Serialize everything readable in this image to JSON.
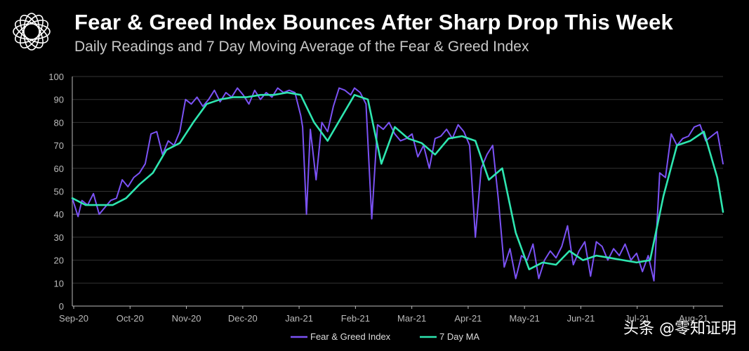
{
  "header": {
    "title": "Fear & Greed Index Bounces After Sharp Drop This Week",
    "subtitle": "Daily Readings and 7 Day Moving Average of the Fear & Greed Index"
  },
  "watermark": "头条 @零知证明",
  "colors": {
    "daily": "#7b52f5",
    "ma": "#2ee6b0",
    "grid": "#333333",
    "axis": "#bbbbbb",
    "refline": "#555555"
  },
  "chart_data": {
    "type": "line",
    "title": "Fear & Greed Index Bounces After Sharp Drop This Week",
    "xlabel": "",
    "ylabel": "",
    "ylim": [
      0,
      100
    ],
    "yticks": [
      0,
      10,
      20,
      30,
      40,
      50,
      60,
      70,
      80,
      90,
      100
    ],
    "grid": true,
    "xticks": [
      "Sep-20",
      "Oct-20",
      "Nov-20",
      "Dec-20",
      "Jan-21",
      "Feb-21",
      "Mar-21",
      "Apr-21",
      "May-21",
      "Jun-21",
      "Jul-21",
      "Aug-21"
    ],
    "legend": [
      "Fear & Greed Index",
      "7 Day MA"
    ],
    "reference_line": 40,
    "series": [
      {
        "name": "Fear & Greed Index",
        "x": [
          0,
          3,
          5,
          8,
          11,
          14,
          17,
          20,
          23,
          26,
          29,
          32,
          35,
          38,
          41,
          44,
          47,
          50,
          53,
          56,
          59,
          62,
          65,
          68,
          71,
          74,
          77,
          80,
          83,
          86,
          89,
          92,
          95,
          98,
          101,
          104,
          107,
          110,
          113,
          116,
          119,
          120,
          122,
          124,
          127,
          130,
          133,
          136,
          139,
          142,
          145,
          147,
          150,
          153,
          156,
          159,
          162,
          165,
          168,
          171,
          174,
          177,
          180,
          183,
          186,
          189,
          192,
          195,
          198,
          201,
          204,
          207,
          210,
          213,
          216,
          219,
          222,
          225,
          228,
          231,
          234,
          237,
          240,
          243,
          246,
          249,
          252,
          255,
          258,
          261,
          264,
          267,
          270,
          273,
          276,
          279,
          282,
          285,
          288,
          291,
          294,
          297,
          300,
          303,
          306,
          309,
          312,
          315,
          318,
          321,
          324,
          327,
          330,
          333,
          336,
          339
        ],
        "y": [
          47,
          39,
          46,
          44,
          49,
          40,
          43,
          46,
          47,
          55,
          52,
          56,
          58,
          62,
          75,
          76,
          66,
          72,
          70,
          76,
          90,
          88,
          91,
          87,
          90,
          94,
          89,
          93,
          91,
          95,
          92,
          88,
          94,
          90,
          93,
          91,
          95,
          93,
          94,
          93,
          83,
          78,
          40,
          77,
          55,
          80,
          76,
          87,
          95,
          94,
          92,
          95,
          93,
          88,
          38,
          79,
          77,
          80,
          75,
          72,
          73,
          75,
          65,
          70,
          60,
          73,
          74,
          77,
          73,
          79,
          76,
          70,
          30,
          60,
          66,
          70,
          46,
          17,
          25,
          12,
          22,
          20,
          27,
          12,
          20,
          24,
          21,
          26,
          35,
          18,
          24,
          28,
          13,
          28,
          26,
          20,
          25,
          22,
          27,
          20,
          23,
          15,
          22,
          11,
          58,
          56,
          75,
          70,
          73,
          74,
          78,
          79,
          72,
          74,
          76,
          62
        ]
      },
      {
        "name": "7 Day MA",
        "x": [
          0,
          7,
          14,
          21,
          28,
          35,
          42,
          49,
          56,
          63,
          70,
          77,
          84,
          91,
          98,
          105,
          112,
          119,
          126,
          133,
          140,
          147,
          154,
          161,
          168,
          175,
          182,
          189,
          196,
          203,
          210,
          217,
          224,
          231,
          238,
          245,
          252,
          259,
          266,
          273,
          280,
          287,
          294,
          301,
          308,
          315,
          322,
          329,
          336,
          339
        ],
        "y": [
          47,
          44,
          44,
          44,
          47,
          53,
          58,
          68,
          71,
          80,
          88,
          90,
          91,
          91,
          92,
          92,
          93,
          92,
          80,
          72,
          82,
          92,
          90,
          62,
          78,
          73,
          71,
          66,
          73,
          74,
          72,
          55,
          60,
          32,
          16,
          19,
          18,
          24,
          20,
          22,
          21,
          20,
          19,
          20,
          48,
          70,
          72,
          76,
          56,
          41
        ]
      }
    ]
  }
}
